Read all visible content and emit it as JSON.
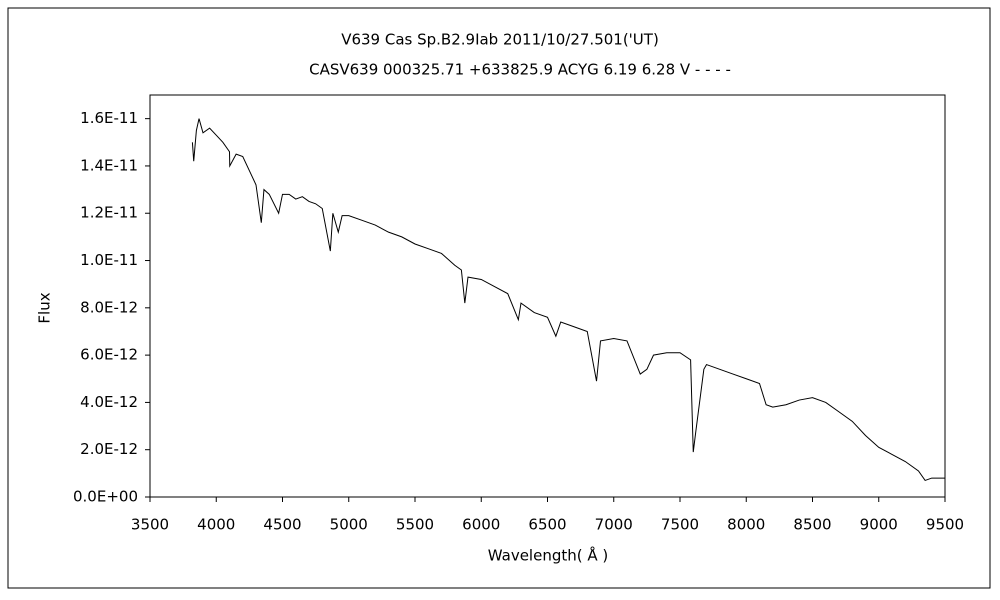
{
  "chart_data": {
    "type": "line",
    "title": "V639 Cas  Sp.B2.9Iab    2011/10/27.501('UT)",
    "subtitle": "CASV639 000325.71 +633825.9 ACYG 6.19 6.28 V - - - -",
    "xlabel": "Wavelength( Å )",
    "ylabel": "Flux",
    "color": "#000000",
    "xlim": [
      3500,
      9500
    ],
    "xticks": [
      3500,
      4000,
      4500,
      5000,
      5500,
      6000,
      6500,
      7000,
      7500,
      8000,
      8500,
      9000,
      9500
    ],
    "ylim": [
      0,
      1.7e-11
    ],
    "yticks": [
      {
        "value": 0,
        "label": "0.0E+00"
      },
      {
        "value": 2e-12,
        "label": "2.0E-12"
      },
      {
        "value": 4e-12,
        "label": "4.0E-12"
      },
      {
        "value": 6e-12,
        "label": "6.0E-12"
      },
      {
        "value": 8e-12,
        "label": "8.0E-12"
      },
      {
        "value": 1e-11,
        "label": "1.0E-11"
      },
      {
        "value": 1.2e-11,
        "label": "1.2E-11"
      },
      {
        "value": 1.4e-11,
        "label": "1.4E-11"
      },
      {
        "value": 1.6e-11,
        "label": "1.6E-11"
      }
    ],
    "x": [
      3820,
      3830,
      3850,
      3870,
      3900,
      3950,
      4000,
      4050,
      4100,
      4102,
      4150,
      4200,
      4250,
      4300,
      4340,
      4360,
      4400,
      4471,
      4500,
      4550,
      4600,
      4650,
      4700,
      4750,
      4800,
      4861,
      4880,
      4921,
      4950,
      5000,
      5100,
      5200,
      5300,
      5400,
      5500,
      5600,
      5700,
      5800,
      5850,
      5876,
      5900,
      6000,
      6100,
      6200,
      6280,
      6300,
      6400,
      6500,
      6563,
      6600,
      6700,
      6800,
      6870,
      6900,
      7000,
      7100,
      7200,
      7250,
      7300,
      7400,
      7500,
      7580,
      7600,
      7620,
      7680,
      7700,
      7800,
      7900,
      8000,
      8100,
      8150,
      8200,
      8300,
      8400,
      8500,
      8600,
      8700,
      8800,
      8900,
      9000,
      9100,
      9200,
      9300,
      9350,
      9400,
      9500
    ],
    "values": [
      1.5e-11,
      1.42e-11,
      1.55e-11,
      1.6e-11,
      1.54e-11,
      1.56e-11,
      1.53e-11,
      1.5e-11,
      1.46e-11,
      1.4e-11,
      1.45e-11,
      1.44e-11,
      1.38e-11,
      1.32e-11,
      1.16e-11,
      1.3e-11,
      1.28e-11,
      1.2e-11,
      1.28e-11,
      1.28e-11,
      1.26e-11,
      1.27e-11,
      1.25e-11,
      1.24e-11,
      1.22e-11,
      1.04e-11,
      1.2e-11,
      1.12e-11,
      1.19e-11,
      1.19e-11,
      1.17e-11,
      1.15e-11,
      1.12e-11,
      1.1e-11,
      1.07e-11,
      1.05e-11,
      1.03e-11,
      9.8e-12,
      9.6e-12,
      8.2e-12,
      9.3e-12,
      9.2e-12,
      8.9e-12,
      8.6e-12,
      7.5e-12,
      8.2e-12,
      7.8e-12,
      7.6e-12,
      6.8e-12,
      7.4e-12,
      7.2e-12,
      7e-12,
      4.9e-12,
      6.6e-12,
      6.7e-12,
      6.6e-12,
      5.2e-12,
      5.4e-12,
      6e-12,
      6.1e-12,
      6.1e-12,
      5.8e-12,
      1.9e-12,
      2.8e-12,
      5.4e-12,
      5.6e-12,
      5.4e-12,
      5.2e-12,
      5e-12,
      4.8e-12,
      3.9e-12,
      3.8e-12,
      3.9e-12,
      4.1e-12,
      4.2e-12,
      4e-12,
      3.6e-12,
      3.2e-12,
      2.6e-12,
      2.1e-12,
      1.8e-12,
      1.5e-12,
      1.1e-12,
      7e-13,
      8e-13,
      8e-13
    ]
  }
}
